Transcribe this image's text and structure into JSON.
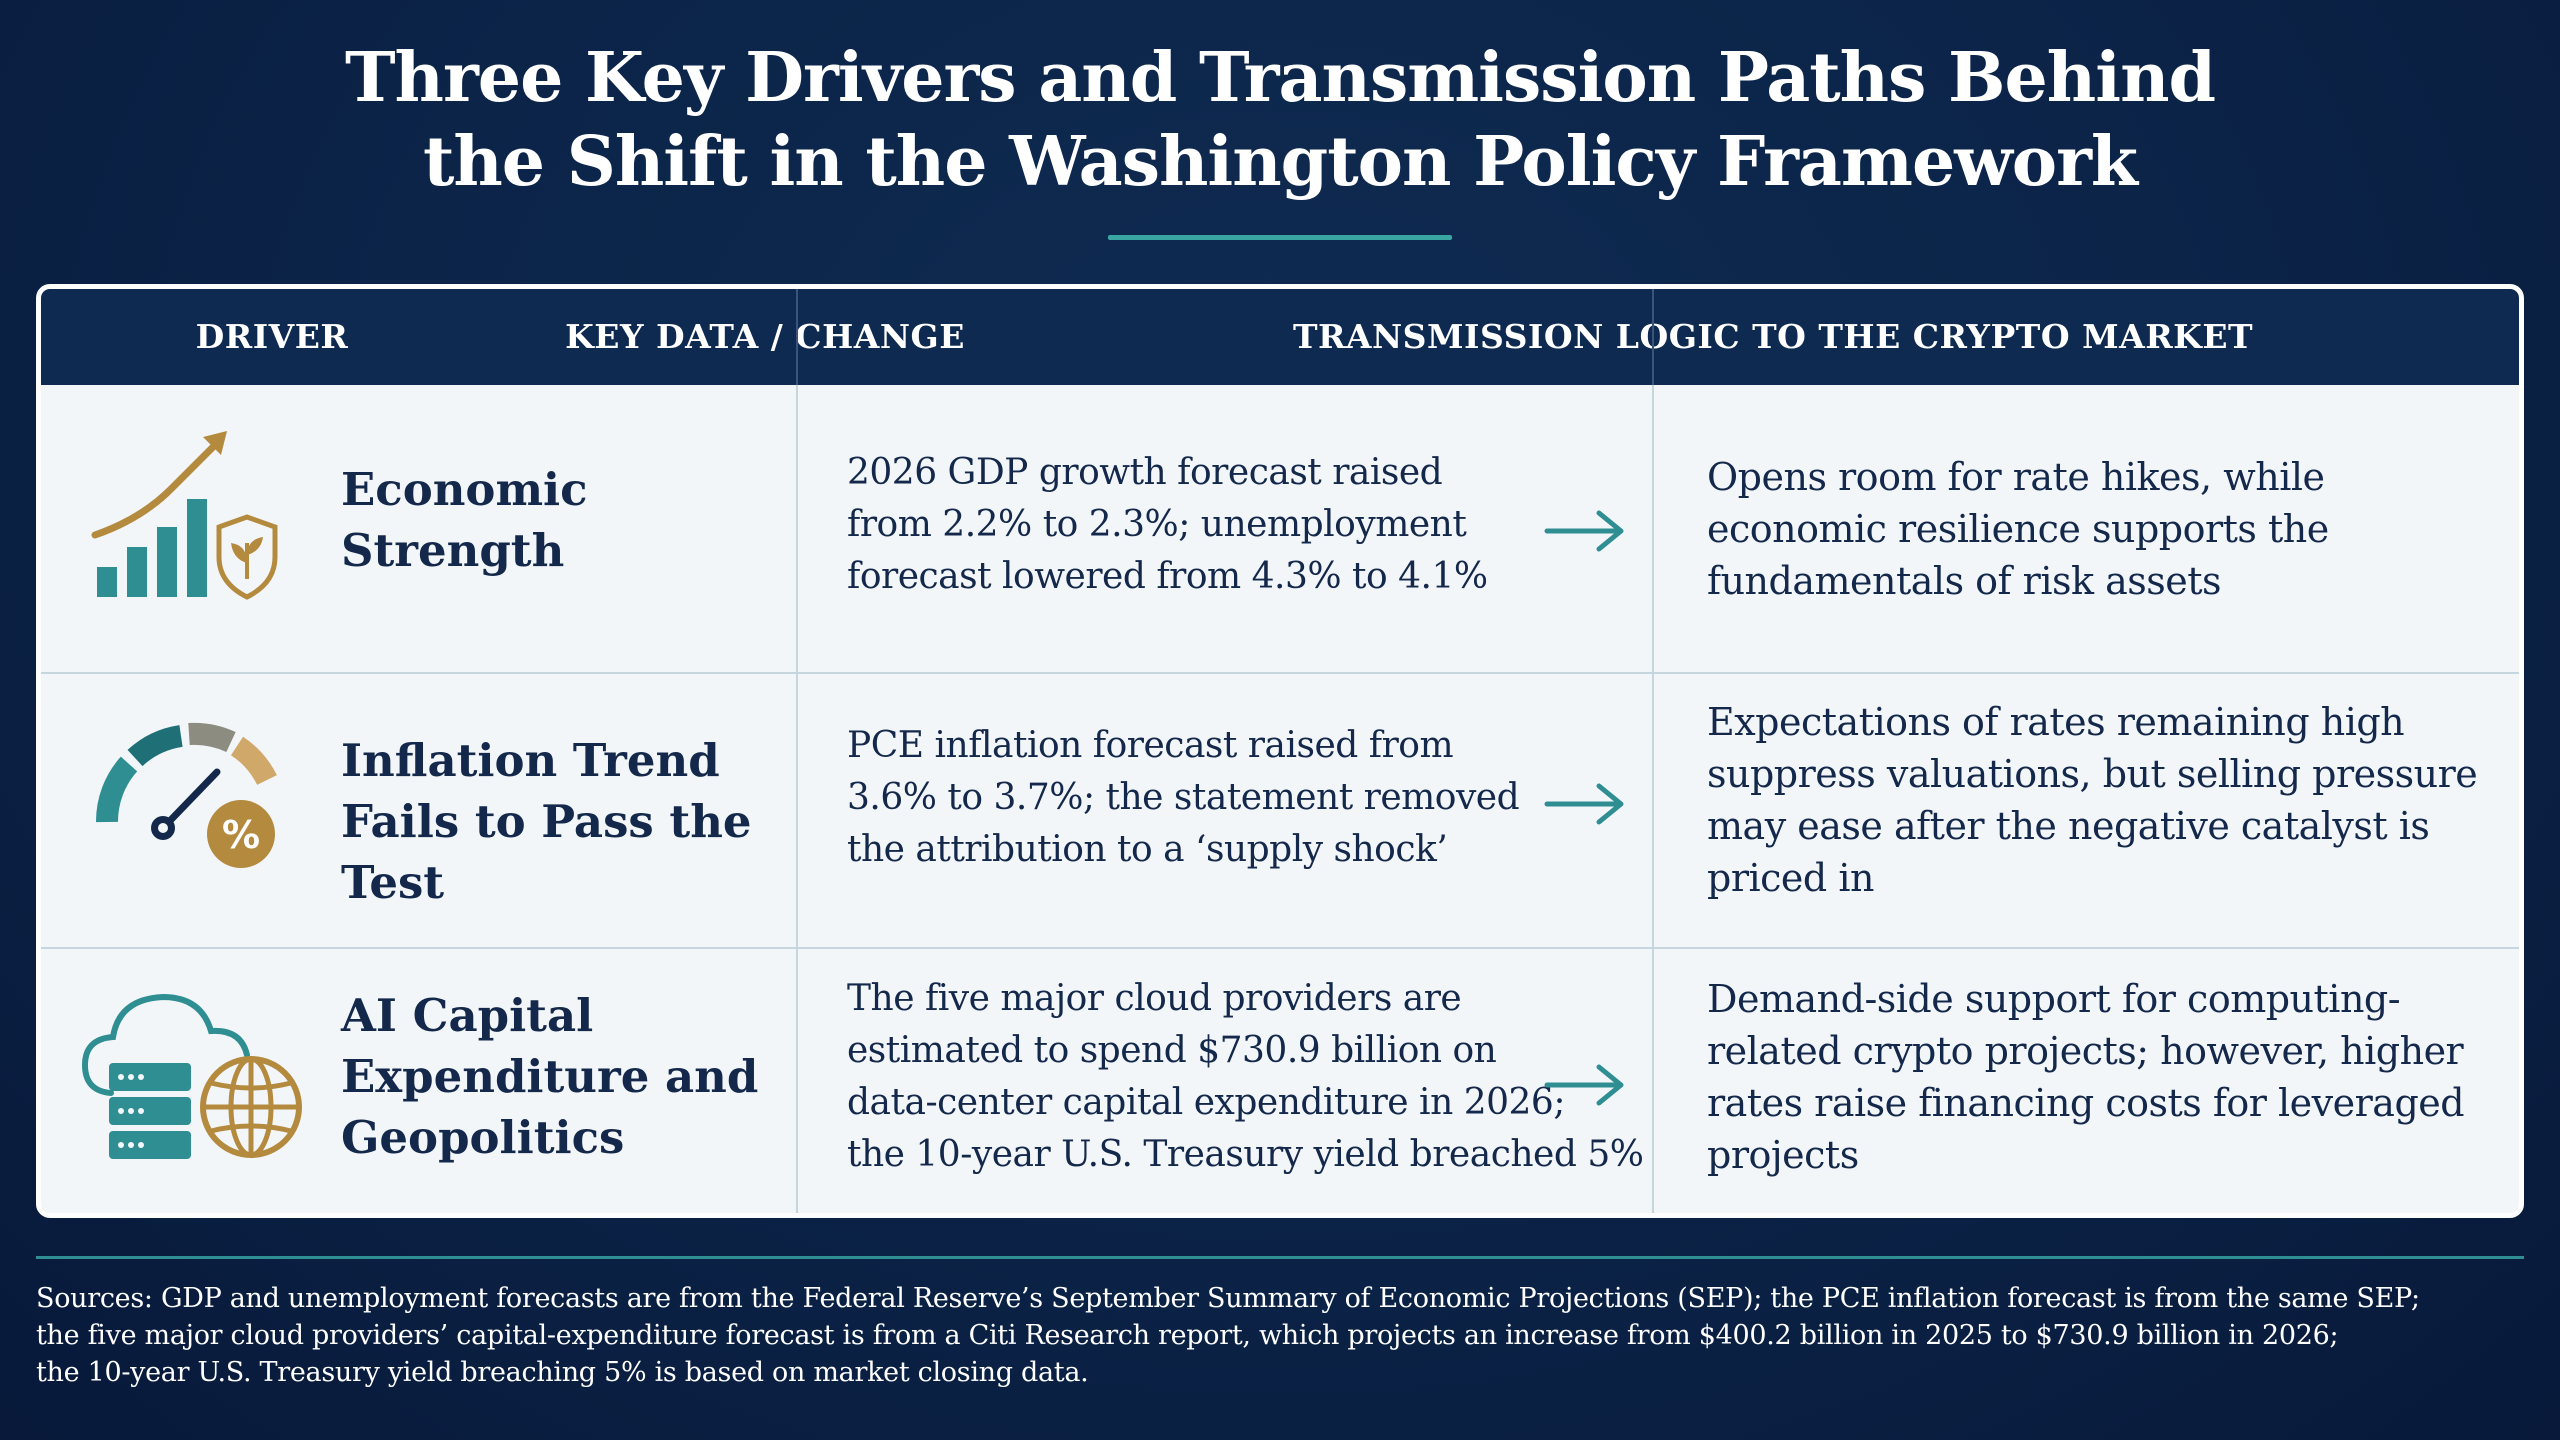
{
  "title": {
    "line1": "Three Key Drivers and Transmission Paths Behind",
    "line2": "the Shift in the Washington Policy Framework"
  },
  "table": {
    "headers": {
      "driver": "DRIVER",
      "data": "KEY DATA / CHANGE",
      "logic": "TRANSMISSION LOGIC TO THE CRYPTO MARKET"
    },
    "rows": [
      {
        "icon": "bar-chart-growth-shield-icon",
        "driver": [
          "Economic",
          "Strength"
        ],
        "data": [
          "2026 GDP growth forecast raised",
          "from 2.2% to 2.3%; unemployment",
          "forecast lowered from 4.3% to 4.1%"
        ],
        "logic": [
          "Opens room for rate hikes, while",
          "economic resilience supports the",
          "fundamentals of risk assets"
        ]
      },
      {
        "icon": "gauge-percent-icon",
        "driver": [
          "Inflation Trend",
          "Fails to Pass the Test"
        ],
        "data": [
          "PCE inflation forecast raised from",
          "3.6% to 3.7%; the statement removed",
          "the attribution to a ‘supply shock’"
        ],
        "logic": [
          "Expectations of rates remaining high",
          "suppress valuations, but selling pressure",
          "may ease after the negative catalyst is",
          "priced in"
        ]
      },
      {
        "icon": "cloud-server-globe-icon",
        "driver": [
          "AI Capital",
          "Expenditure and",
          "Geopolitics"
        ],
        "data": [
          "The five major cloud providers are",
          "estimated to spend $730.9 billion on",
          "data-center capital expenditure in 2026;",
          "the 10-year U.S. Treasury yield breached 5%"
        ],
        "logic": [
          "Demand-side support for computing-",
          "related crypto projects; however, higher",
          "rates raise financing costs for leveraged",
          "projects"
        ]
      }
    ]
  },
  "sources": [
    "Sources: GDP and unemployment forecasts are from the Federal Reserve’s September Summary of Economic Projections (SEP); the PCE inflation forecast is from the same SEP;",
    "the five major cloud providers’ capital-expenditure forecast is from a Citi Research report, which projects an increase from $400.2 billion in 2025 to $730.9 billion in 2026;",
    "the 10-year U.S. Treasury yield breaching 5% is based on market closing data."
  ],
  "colors": {
    "navy": "#0e2a50",
    "teal": "#2e8e92",
    "gold": "#b38a3e",
    "background": "#0b2347"
  }
}
